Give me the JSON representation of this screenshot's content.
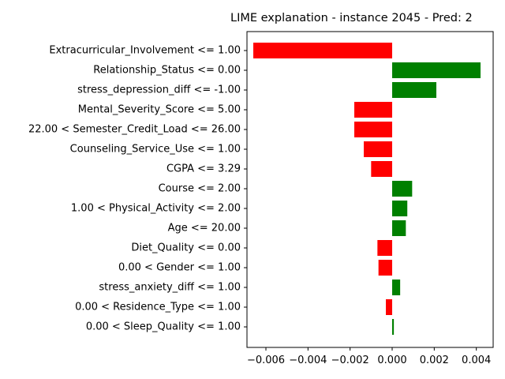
{
  "chart_data": {
    "type": "bar",
    "orientation": "horizontal",
    "title": "LIME explanation - instance 2045 - Pred: 2",
    "xlabel": "",
    "ylabel": "",
    "xlim": [
      -0.0069,
      0.0048
    ],
    "x_ticks": [
      -0.006,
      -0.004,
      -0.002,
      0.0,
      0.002,
      0.004
    ],
    "x_tick_labels": [
      "−0.006",
      "−0.004",
      "−0.002",
      "0.000",
      "0.002",
      "0.004"
    ],
    "grid": false,
    "legend": "none",
    "colors": {
      "positive": "#008000",
      "negative": "#ff0000"
    },
    "categories": [
      "Extracurricular_Involvement <= 1.00",
      "Relationship_Status <= 0.00",
      "stress_depression_diff <= -1.00",
      "Mental_Severity_Score <= 5.00",
      "22.00 < Semester_Credit_Load <= 26.00",
      "Counseling_Service_Use <= 1.00",
      "CGPA <= 3.29",
      "Course <= 2.00",
      "1.00 < Physical_Activity <= 2.00",
      "Age <= 20.00",
      "Diet_Quality <= 0.00",
      "0.00 < Gender <= 1.00",
      "stress_anxiety_diff <= 1.00",
      "0.00 < Residence_Type <= 1.00",
      "0.00 < Sleep_Quality <= 1.00"
    ],
    "values": [
      -0.0066,
      0.0042,
      0.0021,
      -0.0018,
      -0.0018,
      -0.00135,
      -0.001,
      0.00095,
      0.00072,
      0.00065,
      -0.0007,
      -0.00065,
      0.00038,
      -0.0003,
      8e-05
    ]
  }
}
